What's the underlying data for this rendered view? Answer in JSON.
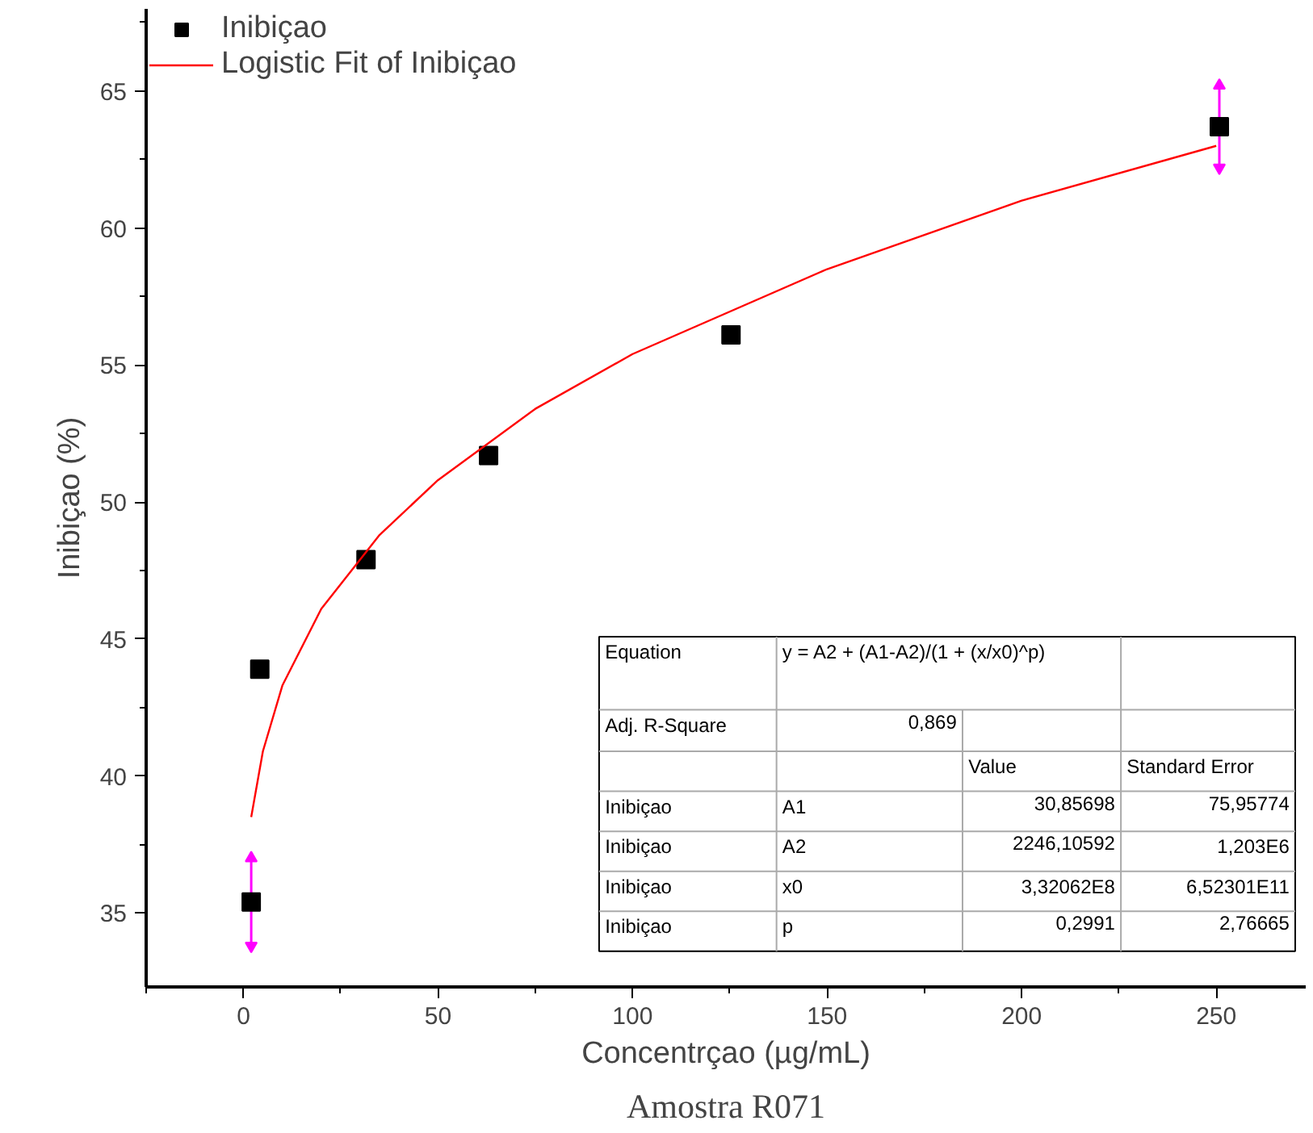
{
  "chart_data": {
    "type": "scatter",
    "xlabel": "Concentrçao (µg/mL)",
    "ylabel": "Inibiçao (%)",
    "xlim": [
      -25,
      273
    ],
    "ylim": [
      32.3,
      68
    ],
    "xticks": [
      0,
      50,
      100,
      150,
      200,
      250
    ],
    "yticks": [
      35,
      40,
      45,
      50,
      55,
      60,
      65
    ],
    "grid": false,
    "legend": "top left",
    "series": [
      {
        "name": "Inibiçao",
        "marker": "square",
        "color": "#000000",
        "x": [
          2,
          4.2,
          31.5,
          63,
          125.3,
          250.8
        ],
        "values": [
          35.4,
          43.9,
          47.9,
          51.7,
          56.1,
          63.7
        ],
        "errors": [
          1.6,
          null,
          null,
          null,
          null,
          1.5
        ]
      },
      {
        "name": "Logistic Fit of Inibiçao",
        "type": "line",
        "marker": "none",
        "color": "#ff0000",
        "x": [
          2,
          5,
          10,
          20,
          35,
          50,
          75,
          100,
          150,
          200,
          250
        ],
        "values": [
          38.5,
          40.9,
          43.3,
          46.1,
          48.8,
          50.8,
          53.4,
          55.4,
          58.5,
          61.0,
          63.0
        ]
      }
    ],
    "annotations": [
      "Amostra R071",
      "Equation",
      "y = A2 + (A1-A2)/(1 + (x/x0)^p)",
      "Adj. R-Square",
      "0,869",
      "Value",
      "Standard Error",
      "Inibiçao",
      "A1",
      "30,85698",
      "75,95774",
      "Inibiçao",
      "A2",
      "2246,10592",
      "1,203E6",
      "Inibiçao",
      "x0",
      "3,32062E8",
      "6,52301E11",
      "Inibiçao",
      "p",
      "0,2991",
      "2,76665"
    ]
  }
}
